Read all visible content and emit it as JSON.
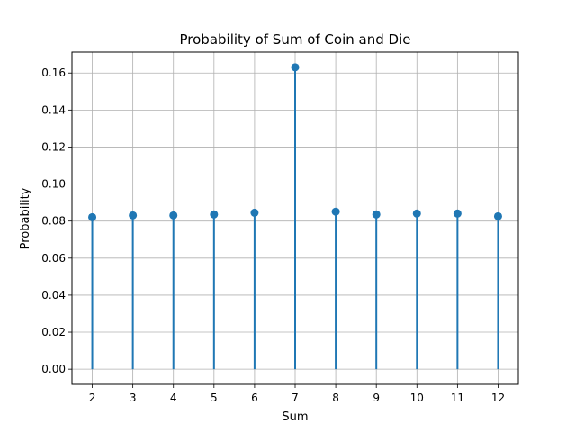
{
  "chart_data": {
    "type": "stem",
    "title": "Probability of Sum of Coin and Die",
    "xlabel": "Sum",
    "ylabel": "Probability",
    "x": [
      2,
      3,
      4,
      5,
      6,
      7,
      8,
      9,
      10,
      11,
      12
    ],
    "y": [
      0.0821,
      0.0831,
      0.0831,
      0.0836,
      0.0845,
      0.1631,
      0.0851,
      0.0836,
      0.0841,
      0.0841,
      0.0826
    ],
    "xlim": [
      1.5,
      12.5
    ],
    "ylim": [
      -0.0082,
      0.1713
    ],
    "xticks": [
      "2",
      "3",
      "4",
      "5",
      "6",
      "7",
      "8",
      "9",
      "10",
      "11",
      "12"
    ],
    "yticks": [
      "0.00",
      "0.02",
      "0.04",
      "0.06",
      "0.08",
      "0.10",
      "0.12",
      "0.14",
      "0.16"
    ],
    "ytick_values": [
      0,
      0.02,
      0.04,
      0.06,
      0.08,
      0.1,
      0.12,
      0.14,
      0.16
    ],
    "grid": true,
    "colors": {
      "stem": "#1f77b4",
      "grid": "#b0b0b0",
      "axis": "#000000"
    }
  }
}
